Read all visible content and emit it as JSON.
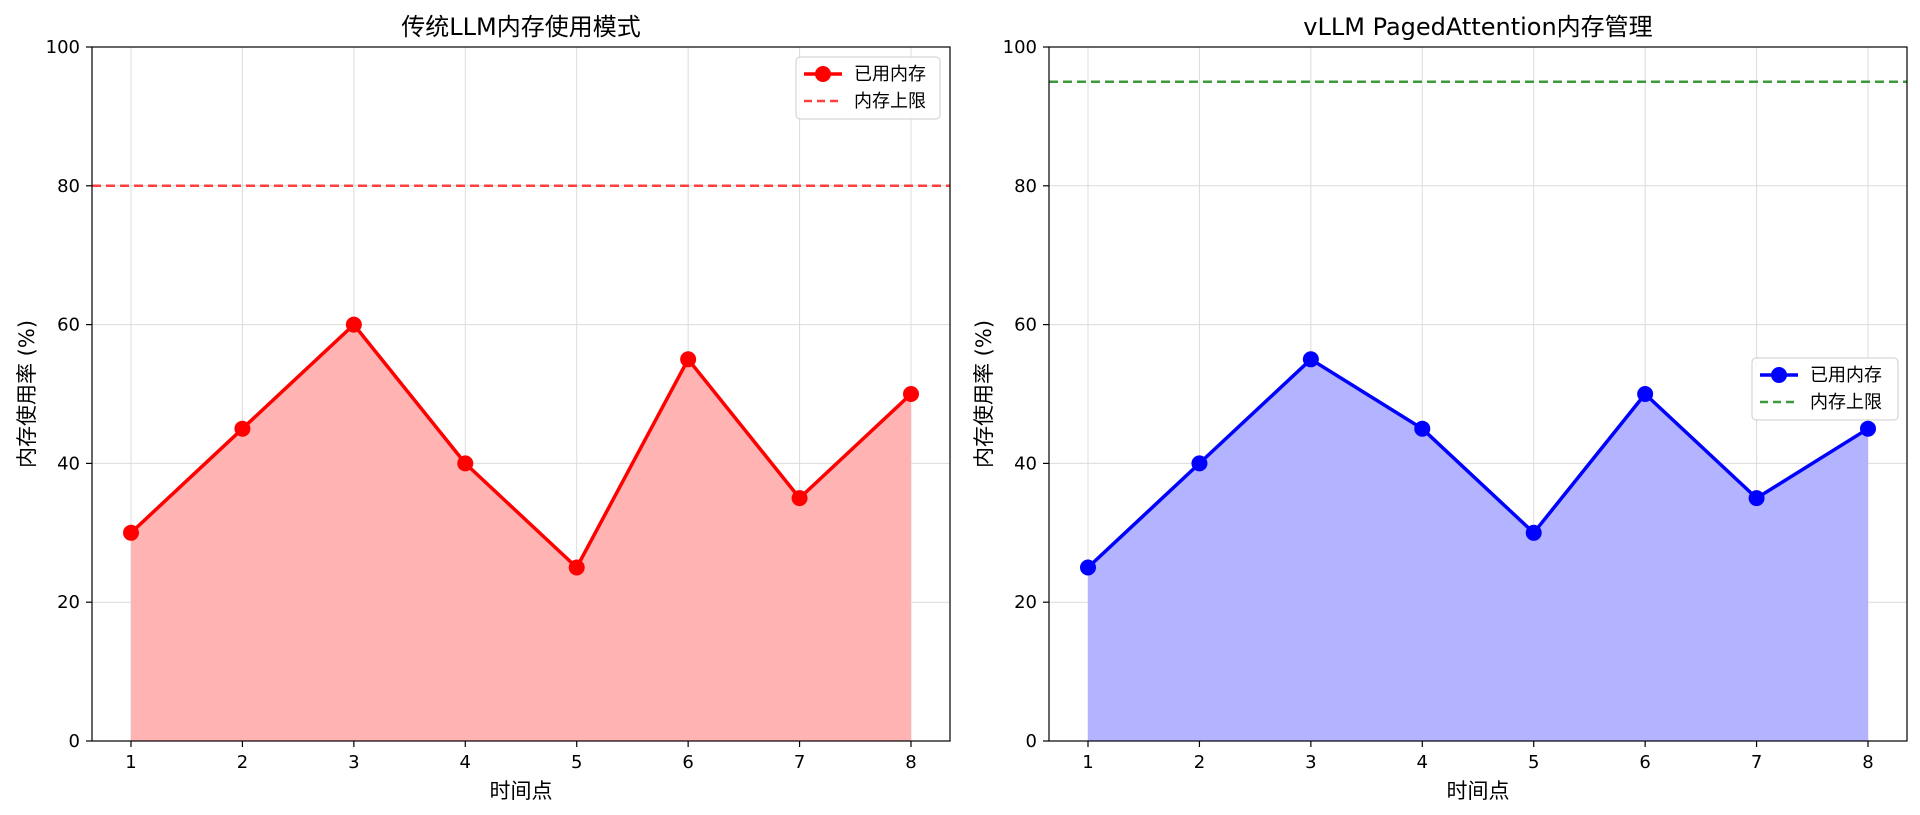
{
  "chart_data": [
    {
      "type": "area",
      "title": "传统LLM内存使用模式",
      "xlabel": "时间点",
      "ylabel": "内存使用率 (%)",
      "x": [
        1,
        2,
        3,
        4,
        5,
        6,
        7,
        8
      ],
      "xlim": [
        0.65,
        8.35
      ],
      "ylim": [
        0,
        100
      ],
      "yticks": [
        0,
        20,
        40,
        60,
        80,
        100
      ],
      "grid": true,
      "legend_position": "top-right",
      "series": [
        {
          "name": "已用内存",
          "values": [
            30,
            45,
            60,
            40,
            25,
            55,
            35,
            50
          ],
          "color": "#ff0000",
          "fill": "#ffb3b3",
          "style": "line-marker"
        }
      ],
      "reference_lines": [
        {
          "name": "内存上限",
          "y": 80,
          "color": "#ff4040",
          "style": "dashed"
        }
      ]
    },
    {
      "type": "area",
      "title": "vLLM PagedAttention内存管理",
      "xlabel": "时间点",
      "ylabel": "内存使用率 (%)",
      "x": [
        1,
        2,
        3,
        4,
        5,
        6,
        7,
        8
      ],
      "xlim": [
        0.65,
        8.35
      ],
      "ylim": [
        0,
        100
      ],
      "yticks": [
        0,
        20,
        40,
        60,
        80,
        100
      ],
      "grid": true,
      "legend_position": "center-right",
      "series": [
        {
          "name": "已用内存",
          "values": [
            25,
            40,
            55,
            45,
            30,
            50,
            35,
            45
          ],
          "color": "#0000ff",
          "fill": "#b3b3ff",
          "style": "line-marker"
        }
      ],
      "reference_lines": [
        {
          "name": "内存上限",
          "y": 95,
          "color": "#3c9a3c",
          "style": "dashed"
        }
      ]
    }
  ]
}
